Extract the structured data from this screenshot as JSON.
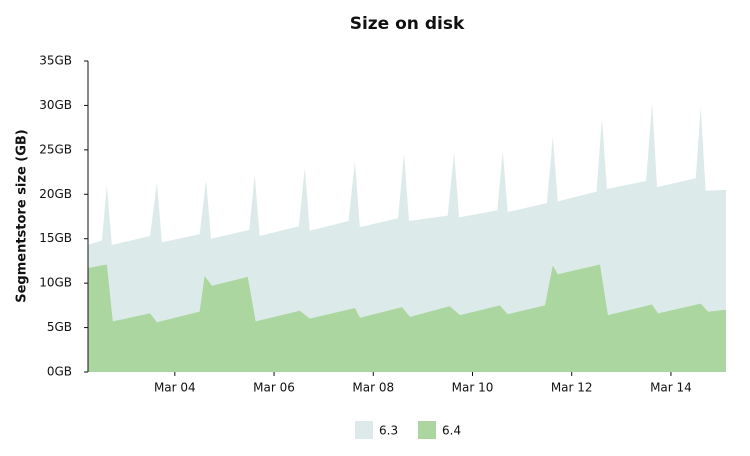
{
  "chart_data": {
    "type": "area",
    "title": "Size on disk",
    "y_label": "Segmentstore size (GB)",
    "xlim": [
      2.25,
      15.11
    ],
    "xticks": [
      {
        "value": 4,
        "label": "Mar 04"
      },
      {
        "value": 6,
        "label": "Mar 06"
      },
      {
        "value": 8,
        "label": "Mar 08"
      },
      {
        "value": 10,
        "label": "Mar 10"
      },
      {
        "value": 12,
        "label": "Mar 12"
      },
      {
        "value": 14,
        "label": "Mar 14"
      }
    ],
    "ylim": [
      0,
      35
    ],
    "yticks": [
      {
        "value": 0,
        "label": "0GB"
      },
      {
        "value": 5,
        "label": "5GB"
      },
      {
        "value": 10,
        "label": "10GB"
      },
      {
        "value": 15,
        "label": "15GB"
      },
      {
        "value": 20,
        "label": "20GB"
      },
      {
        "value": 25,
        "label": "25GB"
      },
      {
        "value": 30,
        "label": "30GB"
      },
      {
        "value": 35,
        "label": "35GB"
      }
    ],
    "series": [
      {
        "name": "6.3",
        "color": "#dcebea",
        "x": [
          2.25,
          2.53,
          2.63,
          2.73,
          3.5,
          3.64,
          3.74,
          4.5,
          4.63,
          4.73,
          5.5,
          5.61,
          5.71,
          6.5,
          6.62,
          6.72,
          7.5,
          7.63,
          7.73,
          8.5,
          8.62,
          8.72,
          9.5,
          9.63,
          9.73,
          10.5,
          10.61,
          10.71,
          11.5,
          11.62,
          11.72,
          12.5,
          12.61,
          12.71,
          13.5,
          13.62,
          13.72,
          14.5,
          14.6,
          14.7,
          15.11
        ],
        "values": [
          14.3,
          14.8,
          21.0,
          14.3,
          15.3,
          21.3,
          14.6,
          15.5,
          21.6,
          15.0,
          16.0,
          22.2,
          15.3,
          16.4,
          23.0,
          15.9,
          17.0,
          23.7,
          16.3,
          17.3,
          24.6,
          17.0,
          17.6,
          24.7,
          17.4,
          18.2,
          24.9,
          18.0,
          19.0,
          26.5,
          19.2,
          20.3,
          28.5,
          20.6,
          21.5,
          30.3,
          20.8,
          21.8,
          29.8,
          20.4,
          20.5
        ]
      },
      {
        "name": "6.4",
        "color": "#acd6a0",
        "x": [
          2.25,
          2.63,
          2.75,
          3.5,
          3.64,
          4.5,
          4.6,
          4.75,
          5.47,
          5.63,
          6.52,
          6.72,
          7.63,
          7.73,
          8.58,
          8.74,
          9.54,
          9.75,
          10.55,
          10.71,
          11.46,
          11.62,
          11.72,
          12.57,
          12.73,
          13.62,
          13.74,
          14.6,
          14.75,
          15.11
        ],
        "values": [
          11.7,
          12.1,
          5.7,
          6.6,
          5.6,
          6.8,
          10.8,
          9.7,
          10.7,
          5.7,
          6.9,
          6.0,
          7.2,
          6.1,
          7.3,
          6.2,
          7.4,
          6.4,
          7.5,
          6.5,
          7.5,
          12.0,
          11.0,
          12.1,
          6.4,
          7.6,
          6.6,
          7.7,
          6.8,
          7.0
        ]
      }
    ]
  }
}
